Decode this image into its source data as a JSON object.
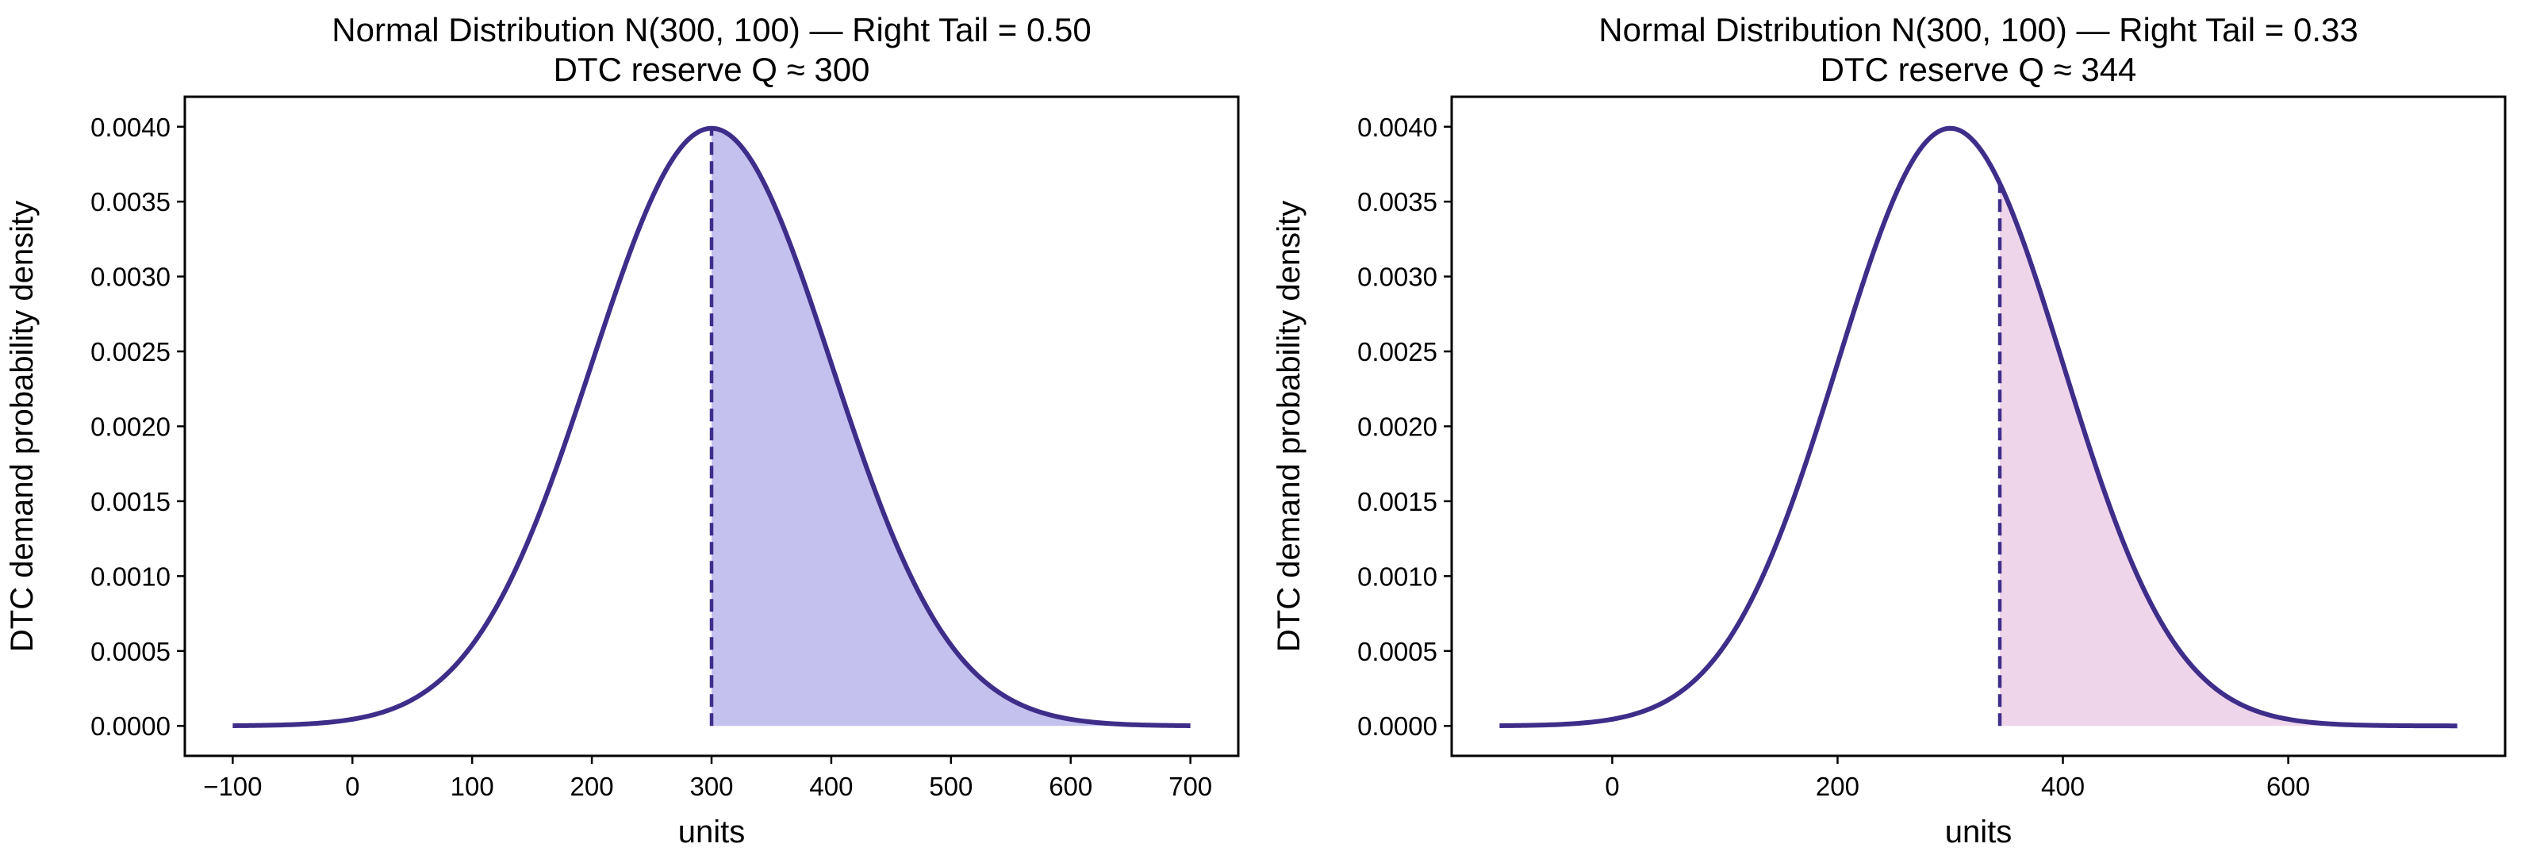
{
  "chart_data": [
    {
      "type": "area",
      "title_line1": "Normal Distribution N(300, 100) — Right Tail = 0.50",
      "title_line2": "DTC reserve Q ≈ 300",
      "xlabel": "units",
      "ylabel": "DTC demand probability density",
      "mean": 300,
      "sd": 100,
      "q": 300,
      "right_tail": 0.5,
      "x_range": [
        -100,
        700
      ],
      "xlim": [
        -140,
        740
      ],
      "ylim": [
        -0.0002,
        0.0042
      ],
      "xticks": [
        -100,
        0,
        100,
        200,
        300,
        400,
        500,
        600,
        700
      ],
      "xtick_labels": [
        "−100",
        "0",
        "100",
        "200",
        "300",
        "400",
        "500",
        "600",
        "700"
      ],
      "yticks": [
        0,
        0.0005,
        0.001,
        0.0015,
        0.002,
        0.0025,
        0.003,
        0.0035,
        0.004
      ],
      "ytick_labels": [
        "0.0000",
        "0.0005",
        "0.0010",
        "0.0015",
        "0.0020",
        "0.0025",
        "0.0030",
        "0.0035",
        "0.0040"
      ],
      "line_color": "#3f2d8a",
      "fill_color": "#c4c1ee"
    },
    {
      "type": "area",
      "title_line1": "Normal Distribution N(300, 100) — Right Tail = 0.33",
      "title_line2": "DTC reserve Q ≈ 344",
      "xlabel": "units",
      "ylabel": "DTC demand probability density",
      "mean": 300,
      "sd": 100,
      "q": 344,
      "right_tail": 0.33,
      "x_range": [
        -100,
        750
      ],
      "xlim": [
        -142.5,
        792.5
      ],
      "ylim": [
        -0.0002,
        0.0042
      ],
      "xticks": [
        0,
        200,
        400,
        600
      ],
      "xtick_labels": [
        "0",
        "200",
        "400",
        "600"
      ],
      "yticks": [
        0,
        0.0005,
        0.001,
        0.0015,
        0.002,
        0.0025,
        0.003,
        0.0035,
        0.004
      ],
      "ytick_labels": [
        "0.0000",
        "0.0005",
        "0.0010",
        "0.0015",
        "0.0020",
        "0.0025",
        "0.0030",
        "0.0035",
        "0.0040"
      ],
      "line_color": "#3f2d8a",
      "fill_color": "#efd5ea"
    }
  ]
}
